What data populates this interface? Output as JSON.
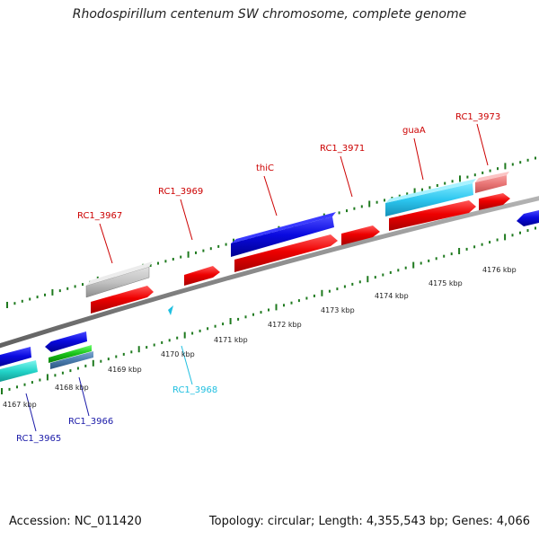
{
  "title": "Rhodospirillum centenum SW chromosome, complete genome",
  "footer": {
    "accession": "Accession: NC_011420",
    "summary": "Topology: circular; Length: 4,355,543 bp; Genes: 4,066"
  },
  "colors": {
    "background": "#ffffff",
    "backbone": "#8a8a8a",
    "tick": "#1f7a1f",
    "forward_label": "#cc0000",
    "reverse_label": "#1a1aa8",
    "highlight_label": "#1fbfe0"
  },
  "scale_labels": [
    "4167 kbp",
    "4168 kbp",
    "4169 kbp",
    "4170 kbp",
    "4171 kbp",
    "4172 kbp",
    "4173 kbp",
    "4174 kbp",
    "4175 kbp",
    "4176 kbp"
  ],
  "gene_labels": {
    "RC1_3967": "RC1_3967",
    "RC1_3969": "RC1_3969",
    "thiC": "thiC",
    "RC1_3971": "RC1_3971",
    "guaA": "guaA",
    "RC1_3973": "RC1_3973",
    "RC1_3968": "RC1_3968",
    "RC1_3966": "RC1_3966",
    "RC1_3965": "RC1_3965"
  }
}
